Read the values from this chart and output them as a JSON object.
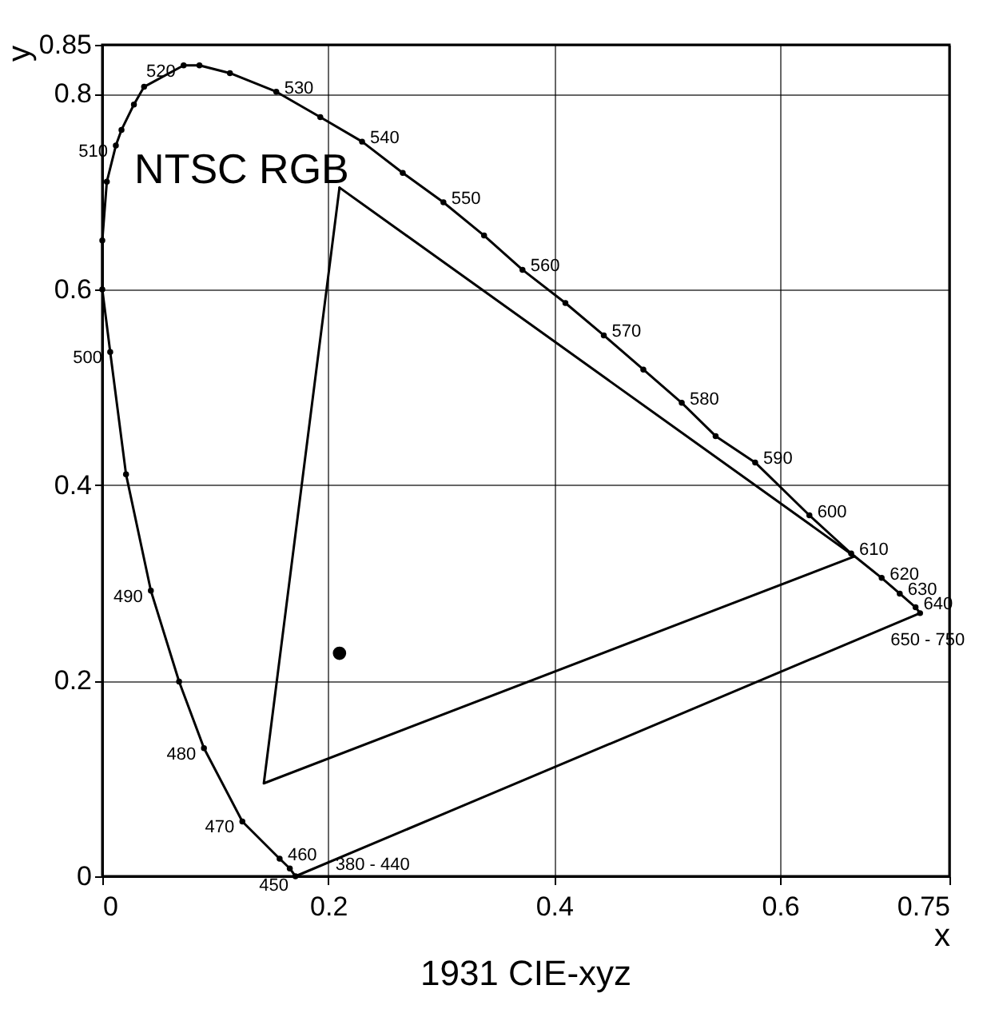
{
  "chart_data": {
    "type": "line",
    "title": "1931 CIE-xyz",
    "xlabel": "x",
    "ylabel": "y",
    "xlim": [
      0,
      0.75
    ],
    "xticks": [
      0,
      0.2,
      0.4,
      0.6,
      0.75
    ],
    "ylim": [
      0,
      0.85
    ],
    "yticks": [
      0,
      0.2,
      0.4,
      0.6,
      0.8,
      0.85
    ],
    "grid": true,
    "series": [
      {
        "marker": "circle",
        "color": "#000000",
        "x": [
          0.171,
          0.166,
          0.157,
          0.124,
          0.09,
          0.068,
          0.043,
          0.021,
          0.007,
          0.0,
          0.0,
          0.004,
          0.012,
          0.017,
          0.028,
          0.037,
          0.072,
          0.086,
          0.113,
          0.154,
          0.193,
          0.23,
          0.266,
          0.302,
          0.338,
          0.372,
          0.41,
          0.444,
          0.479,
          0.513,
          0.543,
          0.578,
          0.626,
          0.663,
          0.69,
          0.706,
          0.72,
          0.724
        ],
        "values": [
          0.0,
          0.008,
          0.018,
          0.056,
          0.131,
          0.199,
          0.292,
          0.411,
          0.536,
          0.6,
          0.65,
          0.71,
          0.747,
          0.763,
          0.789,
          0.807,
          0.829,
          0.829,
          0.821,
          0.802,
          0.776,
          0.751,
          0.719,
          0.689,
          0.655,
          0.62,
          0.586,
          0.553,
          0.518,
          0.484,
          0.45,
          0.423,
          0.369,
          0.33,
          0.305,
          0.289,
          0.275,
          0.269
        ]
      },
      {
        "marker": "none",
        "color": "#000000",
        "x": [
          0.724,
          0.171
        ],
        "values": [
          0.269,
          0.0
        ]
      },
      {
        "marker": "none",
        "name": "NTSC RGB",
        "color": "#000000",
        "x": [
          0.21,
          0.143,
          0.666
        ],
        "values": [
          0.704,
          0.095,
          0.327
        ]
      },
      {
        "marker": "none",
        "color": "#000000",
        "x": [
          0.666,
          0.21
        ],
        "values": [
          0.327,
          0.704
        ]
      },
      {
        "type": "scatter",
        "marker": "circle",
        "color": "#000000",
        "x": [
          0.21
        ],
        "values": [
          0.228
        ]
      }
    ],
    "annotations": [
      {
        "text": "380 - 440",
        "x": 0.171,
        "y": 0.0
      },
      {
        "text": "450",
        "x": 0.166,
        "y": 0.008
      },
      {
        "text": "460",
        "x": 0.157,
        "y": 0.018
      },
      {
        "text": "470",
        "x": 0.124,
        "y": 0.056
      },
      {
        "text": "480",
        "x": 0.09,
        "y": 0.131
      },
      {
        "text": "490",
        "x": 0.043,
        "y": 0.292
      },
      {
        "text": "500",
        "x": 0.007,
        "y": 0.536
      },
      {
        "text": "510",
        "x": 0.012,
        "y": 0.747
      },
      {
        "text": "520",
        "x": 0.072,
        "y": 0.829
      },
      {
        "text": "530",
        "x": 0.154,
        "y": 0.802
      },
      {
        "text": "540",
        "x": 0.23,
        "y": 0.751
      },
      {
        "text": "550",
        "x": 0.302,
        "y": 0.689
      },
      {
        "text": "560",
        "x": 0.372,
        "y": 0.62
      },
      {
        "text": "570",
        "x": 0.444,
        "y": 0.553
      },
      {
        "text": "580",
        "x": 0.513,
        "y": 0.484
      },
      {
        "text": "590",
        "x": 0.578,
        "y": 0.423
      },
      {
        "text": "600",
        "x": 0.626,
        "y": 0.369
      },
      {
        "text": "610",
        "x": 0.663,
        "y": 0.33
      },
      {
        "text": "620",
        "x": 0.69,
        "y": 0.305
      },
      {
        "text": "630",
        "x": 0.706,
        "y": 0.289
      },
      {
        "text": "640",
        "x": 0.72,
        "y": 0.275
      },
      {
        "text": "650 - 750",
        "x": 0.724,
        "y": 0.269
      }
    ]
  }
}
